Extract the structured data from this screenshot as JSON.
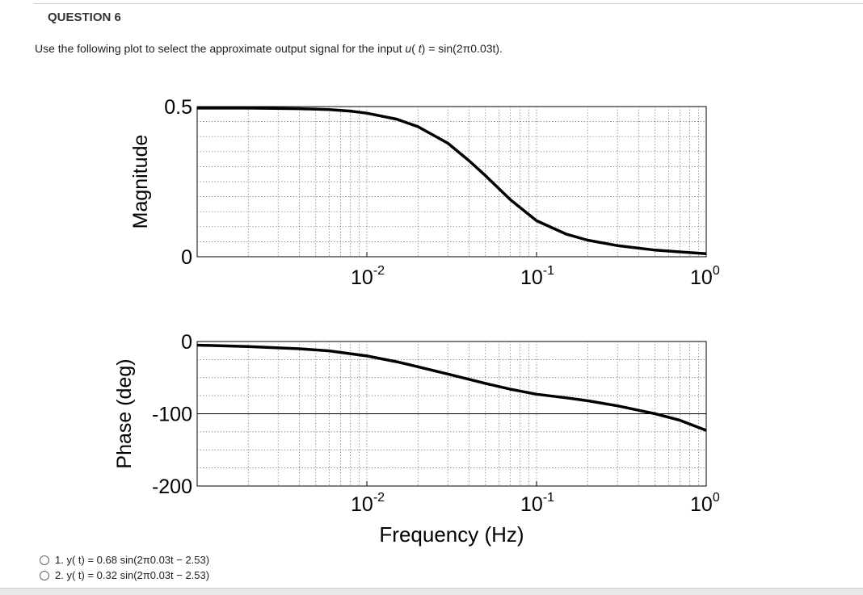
{
  "question": {
    "title": "QUESTION 6",
    "prompt_before": "Use the following plot to select the approximate output signal for the input ",
    "prompt_var": "u",
    "prompt_paren_open": "( ",
    "prompt_t": "t",
    "prompt_after": ") = sin(2π0.03t)."
  },
  "chart_data": [
    {
      "type": "line",
      "ylabel": "Magnitude",
      "xscale": "log",
      "xlim": [
        0.001,
        1.0
      ],
      "ylim": [
        0,
        0.5
      ],
      "grid": true,
      "ytick_labels": [
        "0.5",
        "0"
      ],
      "xtick_labels": [
        {
          "base": "10",
          "exp": "-2"
        },
        {
          "base": "10",
          "exp": "-1"
        },
        {
          "base": "10",
          "exp": "0"
        }
      ],
      "series": [
        {
          "x": [
            0.001,
            0.002,
            0.004,
            0.006,
            0.008,
            0.01,
            0.015,
            0.02,
            0.03,
            0.04,
            0.05,
            0.07,
            0.1,
            0.15,
            0.2,
            0.3,
            0.5,
            0.7,
            1.0
          ],
          "values": [
            0.495,
            0.495,
            0.493,
            0.49,
            0.485,
            0.478,
            0.458,
            0.433,
            0.378,
            0.32,
            0.27,
            0.19,
            0.12,
            0.075,
            0.055,
            0.037,
            0.022,
            0.016,
            0.01
          ]
        }
      ]
    },
    {
      "type": "line",
      "ylabel": "Phase (deg)",
      "xlabel": "Frequency (Hz)",
      "xscale": "log",
      "xlim": [
        0.001,
        1.0
      ],
      "ylim": [
        -200,
        0
      ],
      "grid": true,
      "ytick_labels": [
        "0",
        "-100",
        "-200"
      ],
      "xtick_labels": [
        {
          "base": "10",
          "exp": "-2"
        },
        {
          "base": "10",
          "exp": "-1"
        },
        {
          "base": "10",
          "exp": "0"
        }
      ],
      "series": [
        {
          "x": [
            0.001,
            0.002,
            0.004,
            0.006,
            0.01,
            0.015,
            0.02,
            0.03,
            0.05,
            0.07,
            0.1,
            0.15,
            0.2,
            0.3,
            0.5,
            0.7,
            1.0
          ],
          "values": [
            -5,
            -7,
            -10,
            -13,
            -20,
            -28,
            -35,
            -45,
            -58,
            -66,
            -73,
            -78,
            -82,
            -89,
            -100,
            -109,
            -123
          ]
        }
      ]
    }
  ],
  "answers": [
    {
      "number": "1.",
      "text": "y( t) = 0.68 sin(2π0.03t − 2.53)"
    },
    {
      "number": "2.",
      "text": "y( t) = 0.32 sin(2π0.03t − 2.53)"
    }
  ]
}
